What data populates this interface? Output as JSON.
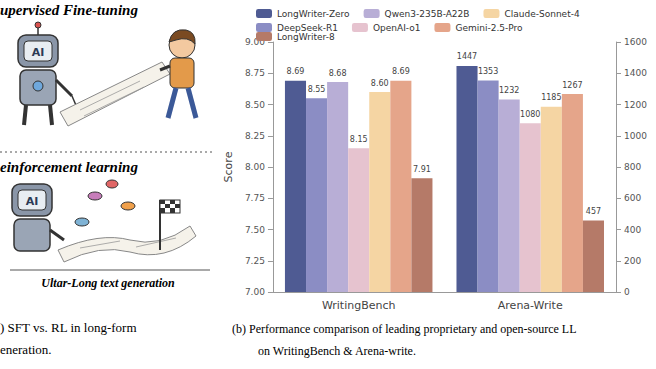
{
  "figure": {
    "panel_a": {
      "title_top": "upervised Fine-tuning",
      "title_bottom": "einforcement learning",
      "robot_label": "AI",
      "scroll_label": "Ultar-Long text generation",
      "caption": [
        ") SFT vs. RL in long-form",
        "eneration."
      ]
    },
    "panel_b_caption": [
      "(b) Performance comparison of leading proprietary and open-source LL",
      "on WritingBench & Arena-write."
    ]
  },
  "chart_data": {
    "type": "bar",
    "categories": [
      "WritingBench",
      "Arena-Write"
    ],
    "y_label": "Score",
    "ylim": [
      7,
      9
    ],
    "yticks": [
      {
        "value": 7,
        "label": "7.00"
      },
      {
        "value": 7.25,
        "label": "7.25"
      },
      {
        "value": 7.5,
        "label": "7.50"
      },
      {
        "value": 7.75,
        "label": "7.75"
      },
      {
        "value": 8,
        "label": "8.00"
      },
      {
        "value": 8.25,
        "label": "8.25"
      },
      {
        "value": 8.5,
        "label": "8.50"
      },
      {
        "value": 8.75,
        "label": "8.75"
      },
      {
        "value": 9,
        "label": "9.00"
      }
    ],
    "y2lim": [
      0,
      1600
    ],
    "y2ticks": [
      0,
      200,
      400,
      600,
      800,
      1000,
      1200,
      1400,
      1600
    ],
    "grid": false,
    "legend": "top",
    "data_labels": true,
    "series": [
      {
        "name": "LongWriter-Zero",
        "color": "#4f5b93",
        "values": [
          8.69,
          null
        ],
        "value_labels": [
          "8.69",
          null
        ]
      },
      {
        "name": "DeepSeek-R1",
        "color": "#8b8dc4",
        "values": [
          8.55,
          null
        ],
        "value_labels": [
          "8.55",
          null
        ]
      },
      {
        "name": "Qwen3-235B-A22B",
        "color": "#b8aed6",
        "values": [
          8.68,
          null
        ],
        "value_labels": [
          "8.68",
          null
        ]
      },
      {
        "name": "OpenAI-o1",
        "color": "#e6c3cf",
        "values": [
          8.15,
          null
        ],
        "value_labels": [
          "8.15",
          null
        ]
      },
      {
        "name": "Claude-Sonnet-4",
        "color": "#f5d5a3",
        "values": [
          8.6,
          null
        ],
        "value_labels": [
          "8.60",
          null
        ]
      },
      {
        "name": "Gemini-2.5-Pro",
        "color": "#e5a58a",
        "values": [
          8.69,
          null
        ],
        "value_labels": [
          "8.69",
          null
        ]
      },
      {
        "name": "LongWriter-8",
        "color": "#b57a68",
        "values": [
          7.91,
          null
        ],
        "value_labels": [
          "7.91",
          null
        ]
      },
      {
        "name": "LongWriter-Zero",
        "color": "#4f5b93",
        "axis": "y2",
        "values": [
          null,
          1447
        ]
      },
      {
        "name": "DeepSeek-R1",
        "color": "#8b8dc4",
        "axis": "y2",
        "values": [
          null,
          1353
        ]
      },
      {
        "name": "Qwen3-235B-A22B",
        "color": "#b8aed6",
        "axis": "y2",
        "values": [
          null,
          1232
        ]
      },
      {
        "name": "OpenAI-o1",
        "color": "#e6c3cf",
        "axis": "y2",
        "values": [
          null,
          1080
        ]
      },
      {
        "name": "Claude-Sonnet-4",
        "color": "#f5d5a3",
        "axis": "y2",
        "values": [
          null,
          1185
        ]
      },
      {
        "name": "Gemini-2.5-Pro",
        "color": "#e5a58a",
        "axis": "y2",
        "values": [
          null,
          1267
        ]
      },
      {
        "name": "LongWriter-8",
        "color": "#b57a68",
        "axis": "y2",
        "values": [
          null,
          457
        ]
      }
    ]
  }
}
